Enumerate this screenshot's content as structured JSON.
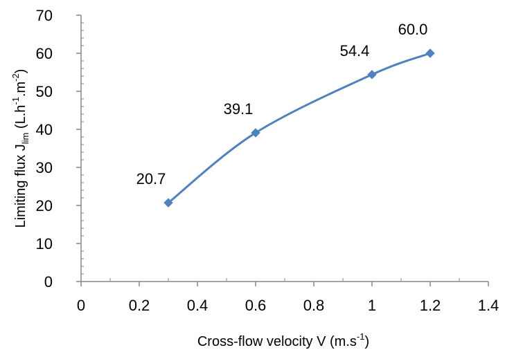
{
  "chart_data": {
    "type": "line",
    "title": "",
    "xlabel": {
      "text": "Cross-flow velocity V (m.s",
      "sup": "-1",
      "close": ")"
    },
    "ylabel": {
      "prefix": "Limiting flux J",
      "sub": "lim",
      "mid1": " (L.h",
      "sup1": "-1",
      "mid2": ".m",
      "sup2": "-2",
      "close": ")"
    },
    "xlim": [
      0,
      1.4
    ],
    "ylim": [
      0,
      70
    ],
    "xticks": [
      0,
      0.2,
      0.4,
      0.6,
      0.8,
      1,
      1.2,
      1.4
    ],
    "xtick_labels": [
      "0",
      "0.2",
      "0.4",
      "0.6",
      "0.8",
      "1",
      "1.2",
      "1.4"
    ],
    "yticks": [
      0,
      10,
      20,
      30,
      40,
      50,
      60,
      70
    ],
    "ytick_labels": [
      "0",
      "10",
      "20",
      "30",
      "40",
      "50",
      "60",
      "70"
    ],
    "grid": false,
    "series": [
      {
        "color": "#4f81bd",
        "marker": "diamond",
        "smooth": true,
        "x": [
          0.3,
          0.6,
          1.0,
          1.2
        ],
        "y": [
          20.7,
          39.1,
          54.4,
          60.0
        ],
        "labels": [
          "20.7",
          "39.1",
          "54.4",
          "60.0"
        ]
      }
    ]
  }
}
